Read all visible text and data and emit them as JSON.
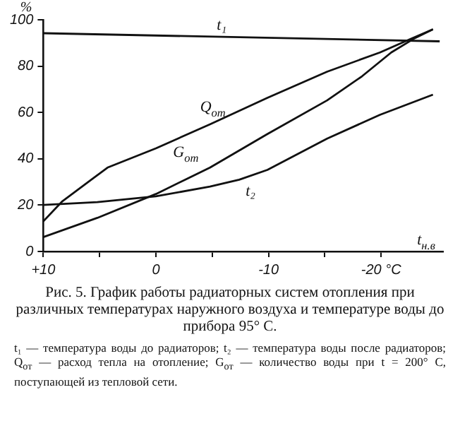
{
  "chart_data": {
    "type": "line",
    "ylabel": "%",
    "xlabel": "t$_{н.в}$",
    "xlim": [
      10,
      -25.5
    ],
    "ylim": [
      0,
      100
    ],
    "xticks": [
      {
        "value": 10,
        "label": "+10"
      },
      {
        "value": 5,
        "label": null
      },
      0,
      {
        "value": -5,
        "label": null
      },
      -10,
      {
        "value": -15,
        "label": null
      },
      {
        "value": -20,
        "label": "-20 °C"
      }
    ],
    "yticks": [
      0,
      20,
      40,
      60,
      80,
      100
    ],
    "grid": false,
    "legend": false,
    "marker": "none",
    "line_style": "solid",
    "series": [
      {
        "name": "t₁",
        "color": "#111111",
        "x": [
          10,
          -25.2
        ],
        "values": [
          94.2,
          90.7
        ]
      },
      {
        "name": "Q$_{от}$",
        "color": "#111111",
        "x": [
          10,
          8.3,
          4.3,
          0,
          -4.8,
          -9.9,
          -15.2,
          -19.9,
          -22.6,
          -24.6
        ],
        "values": [
          13,
          21.7,
          36.2,
          44.5,
          54.9,
          66.3,
          77.6,
          85.9,
          91.7,
          95.9
        ]
      },
      {
        "name": "G$_{от}$",
        "color": "#111111",
        "x": [
          10,
          5.2,
          0,
          -4.8,
          -9.9,
          -15.2,
          -18.3,
          -20.9,
          -23,
          -24.6
        ],
        "values": [
          6.2,
          14.5,
          24.8,
          36.2,
          50.7,
          65.2,
          75.6,
          85.9,
          92.1,
          95.9
        ]
      },
      {
        "name": "t₂",
        "color": "#111111",
        "x": [
          10,
          5.2,
          0,
          -4.8,
          -7.4,
          -9.9,
          -15.2,
          -19.9,
          -24.6
        ],
        "values": [
          20.1,
          21.3,
          23.8,
          28,
          31,
          35.2,
          48.7,
          59,
          67.7
        ]
      }
    ],
    "annotations": [
      "Рис. 5. График работы радиаторных систем отопления при различных температурах наружного воздуха и температуре воды до прибора 95° С.",
      "t₁ — температура воды до радиаторов; t₂ — температура воды после радиаторов; Q$_{от}$ — расход тепла на отопление; G$_{от}$ — количество воды при t = 200° С, поступающей из тепловой сети."
    ]
  }
}
